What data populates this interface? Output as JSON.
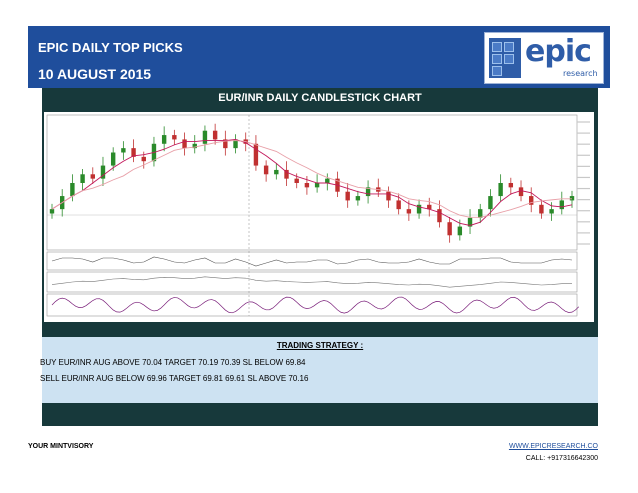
{
  "header": {
    "title": "EPIC DAILY TOP PICKS",
    "date": "10 AUGUST 2015"
  },
  "logo": {
    "word": "epic",
    "sub": "research"
  },
  "chart_panel": {
    "title": "EUR/INR DAILY CANDLESTICK CHART"
  },
  "chart_data": {
    "type": "candlestick",
    "instrument": "EUR/INR",
    "timeframe": "daily",
    "title": "EUR/INR DAILY CANDLESTICK CHART",
    "close": [
      69.6,
      69.9,
      70.2,
      70.4,
      70.3,
      70.6,
      70.9,
      71.0,
      70.8,
      70.7,
      71.1,
      71.3,
      71.2,
      71.0,
      71.1,
      71.4,
      71.2,
      71.0,
      71.2,
      71.1,
      70.6,
      70.4,
      70.5,
      70.3,
      70.2,
      70.1,
      70.2,
      70.3,
      70.0,
      69.8,
      69.9,
      70.1,
      70.0,
      69.8,
      69.6,
      69.5,
      69.7,
      69.6,
      69.3,
      69.0,
      69.2,
      69.4,
      69.6,
      69.9,
      70.2,
      70.1,
      69.9,
      69.7,
      69.5,
      69.6,
      69.8,
      69.9
    ],
    "colors": {
      "up": "#2a8a2a",
      "down": "#c03030",
      "ma_fast": "#c2185b",
      "ma_slow": "#e8a0a8",
      "oscillator": "#7a1f7a"
    }
  },
  "strategy": {
    "title": "TRADING STRATEGY :",
    "buy": "BUY EUR/INR AUG  ABOVE 70.04 TARGET 70.19 70.39 SL BELOW 69.84",
    "sell": "SELL EUR/INR AUG  BELOW 69.96 TARGET 69.81 69.61 SL ABOVE 70.16"
  },
  "footer": {
    "left": "YOUR MINTVISORY",
    "url": "WWW.EPICRESEARCH.CO",
    "call": "CALL: +917316642300"
  }
}
